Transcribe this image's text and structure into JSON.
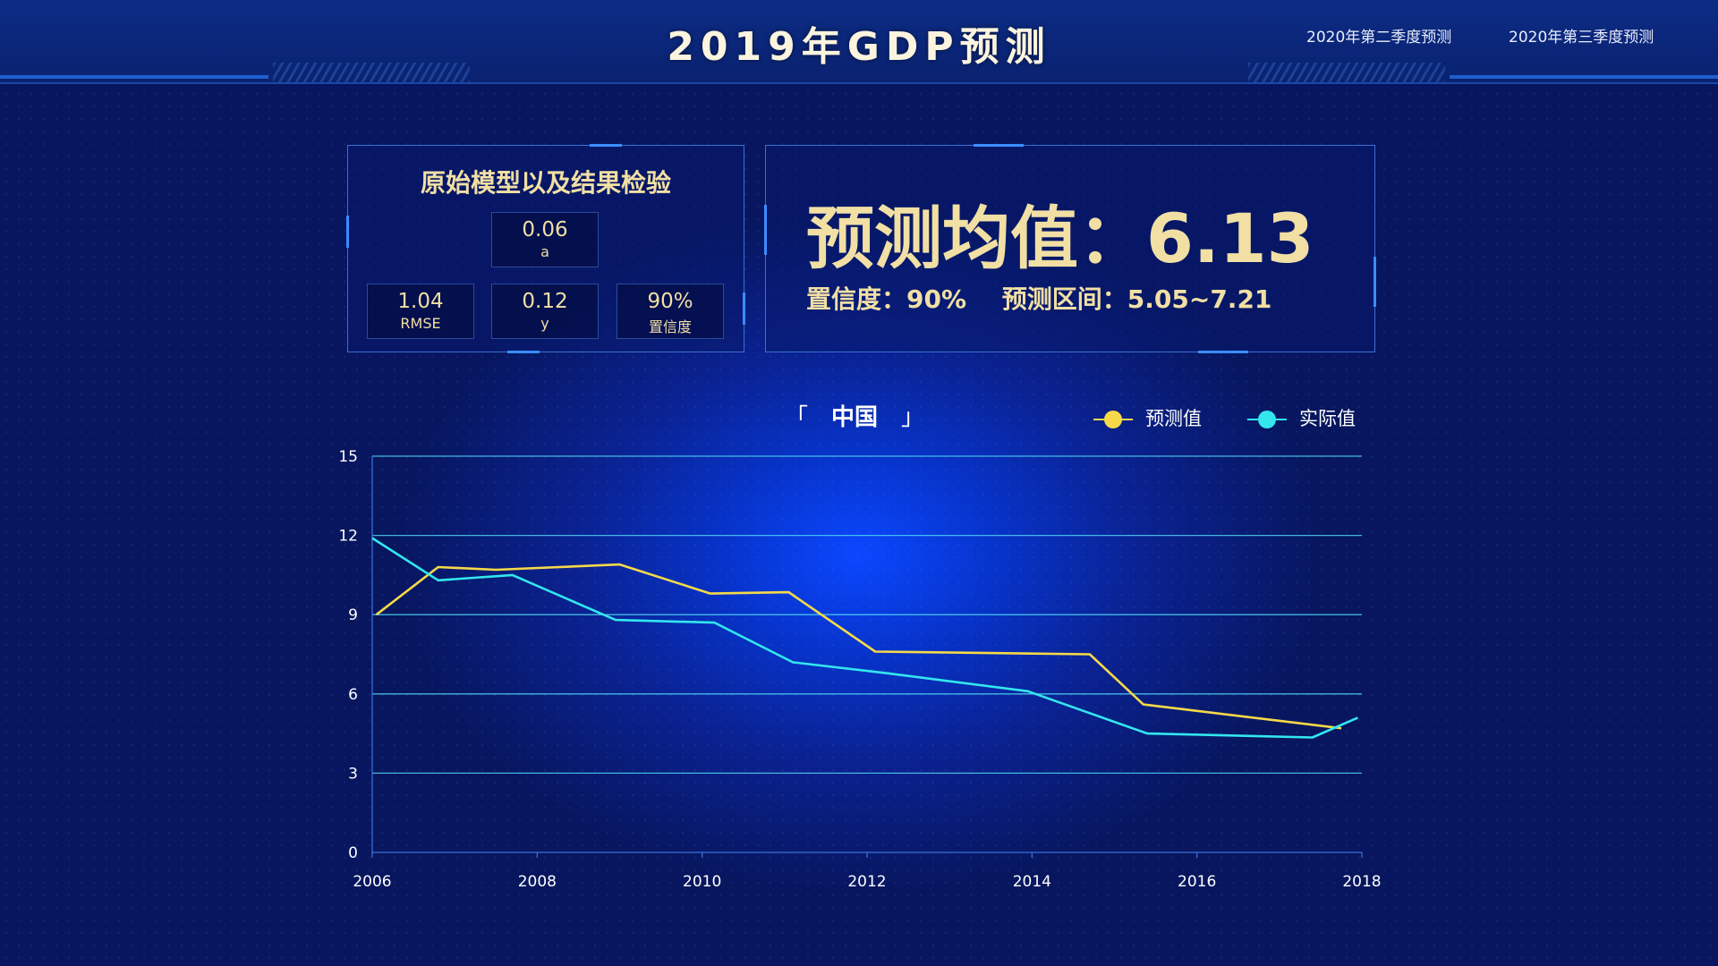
{
  "header": {
    "title": "2019年GDP预测",
    "tabs": [
      {
        "label": "2020年第二季度预测"
      },
      {
        "label": "2020年第三季度预测"
      }
    ]
  },
  "model_panel": {
    "title": "原始模型以及结果检验",
    "metrics": {
      "a": {
        "value": "0.06",
        "label": "a"
      },
      "rmse": {
        "value": "1.04",
        "label": "RMSE"
      },
      "y": {
        "value": "0.12",
        "label": "y"
      },
      "confidence": {
        "value": "90%",
        "label": "置信度"
      }
    }
  },
  "prediction_panel": {
    "mean_label": "预测均值：",
    "mean_value": "6.13",
    "confidence_text": "置信度：90%",
    "interval_text": "预测区间：5.05~7.21"
  },
  "chart_data": {
    "type": "line",
    "title": "中国",
    "title_brackets": [
      "「",
      "」"
    ],
    "xlabel": "",
    "ylabel": "",
    "xlim": [
      2006,
      2018
    ],
    "ylim": [
      0,
      15
    ],
    "x_ticks": [
      "2006",
      "2008",
      "2010",
      "2012",
      "2014",
      "2016",
      "2018"
    ],
    "y_ticks": [
      "0",
      "3",
      "6",
      "9",
      "12",
      "15"
    ],
    "grid": true,
    "legend_position": "top-right",
    "series": [
      {
        "name": "预测值",
        "color": "#f5d949",
        "x": [
          2006.05,
          2006.8,
          2007.5,
          2009.0,
          2010.1,
          2011.05,
          2012.1,
          2014.7,
          2015.35,
          2017.75
        ],
        "y": [
          9.0,
          10.8,
          10.7,
          10.9,
          9.8,
          9.85,
          7.6,
          7.5,
          5.6,
          4.7
        ]
      },
      {
        "name": "实际值",
        "color": "#33e6ee",
        "x": [
          2006.0,
          2006.8,
          2007.7,
          2008.95,
          2010.15,
          2011.1,
          2012.2,
          2013.95,
          2015.4,
          2017.4,
          2017.95
        ],
        "y": [
          11.9,
          10.3,
          10.5,
          8.8,
          8.7,
          7.2,
          6.8,
          6.1,
          4.5,
          4.35,
          5.1
        ]
      }
    ]
  }
}
